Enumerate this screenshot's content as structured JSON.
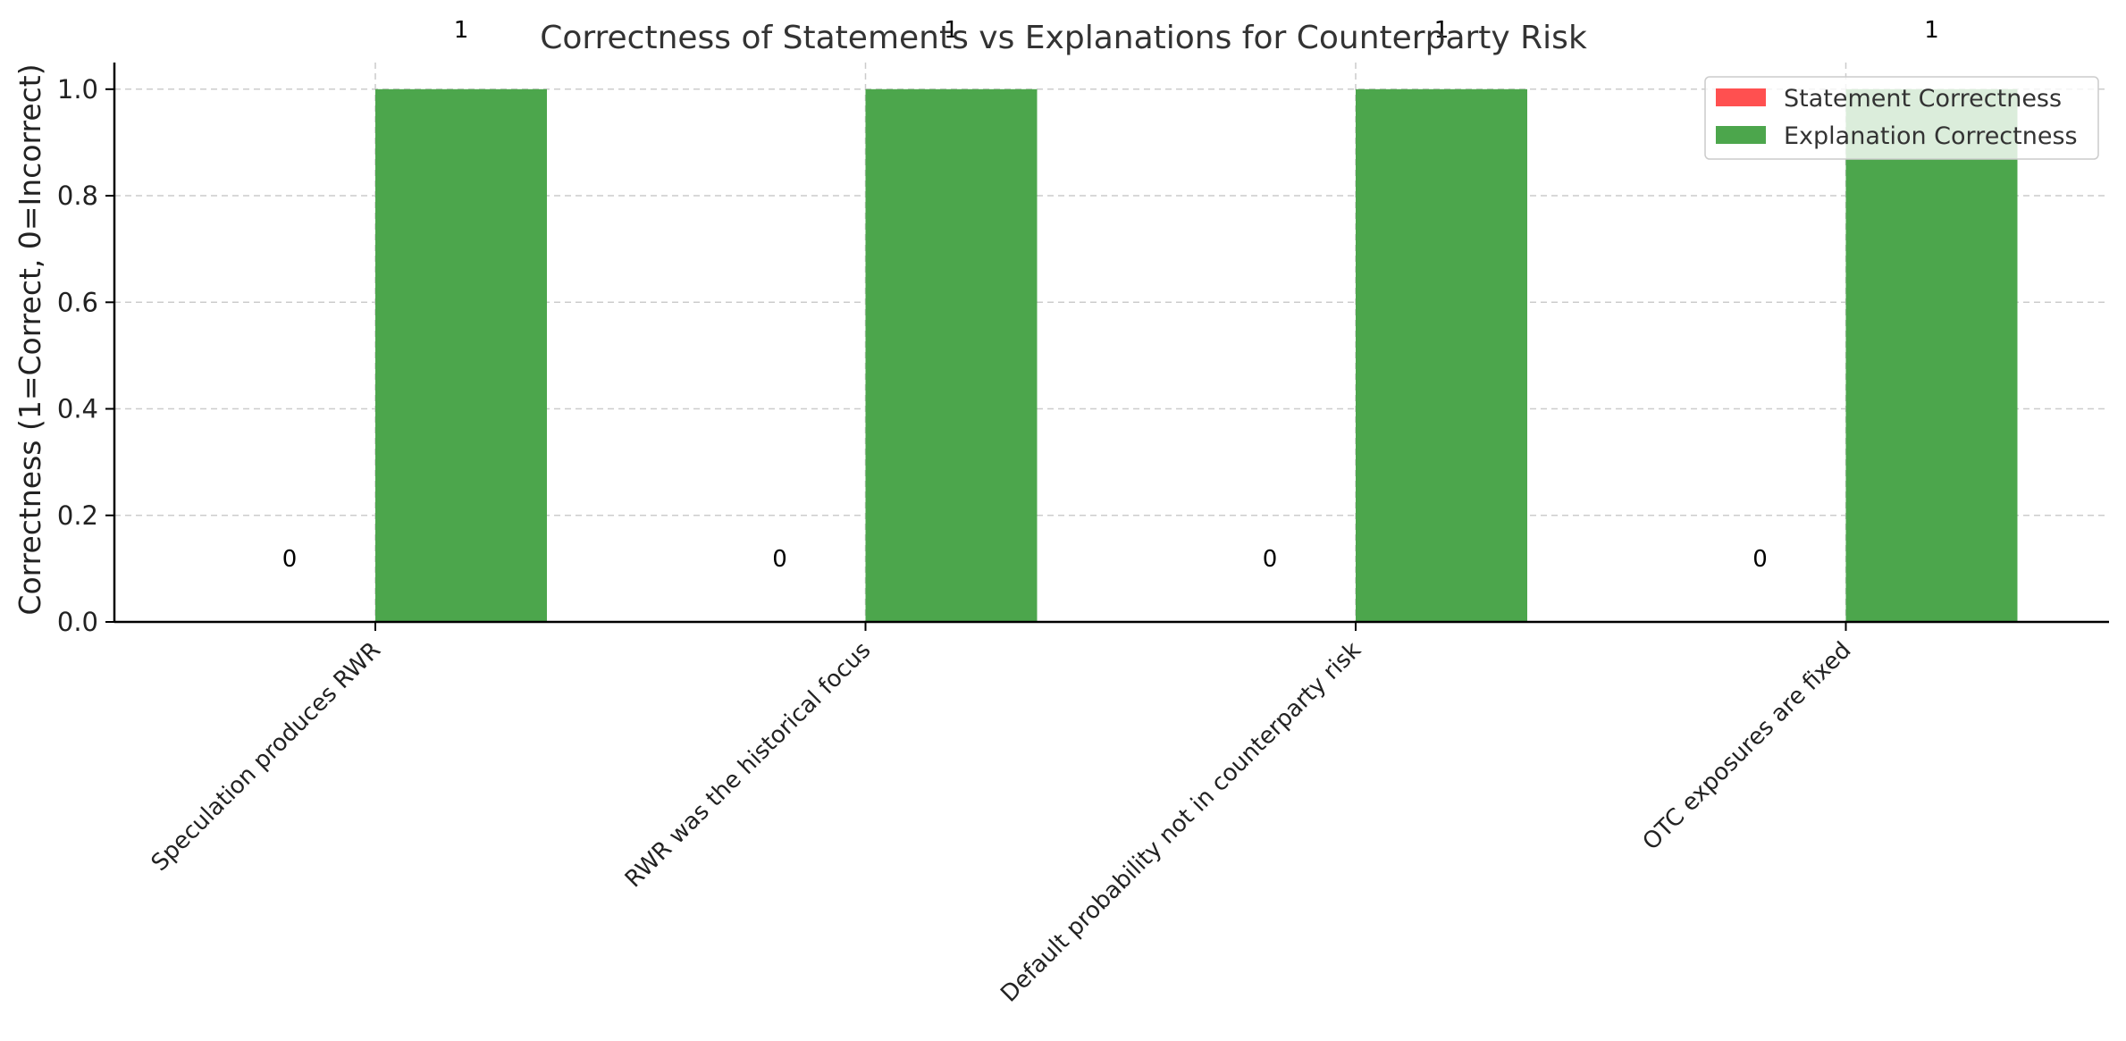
{
  "chart_data": {
    "type": "bar",
    "title": "Correctness of Statements vs Explanations for Counterparty Risk",
    "xlabel": "",
    "ylabel": "Correctness (1=Correct, 0=Incorrect)",
    "categories": [
      "Speculation produces RWR",
      "RWR was the historical focus",
      "Default probability not in counterparty risk",
      "OTC exposures are fixed"
    ],
    "series": [
      {
        "name": "Statement Correctness",
        "color": "#ff5050",
        "values": [
          0,
          0,
          0,
          0
        ],
        "labels": [
          "0",
          "0",
          "0",
          "0"
        ]
      },
      {
        "name": "Explanation Correctness",
        "color": "#4ca64c",
        "values": [
          1,
          1,
          1,
          1
        ],
        "labels": [
          "1",
          "1",
          "1",
          "1"
        ]
      }
    ],
    "ylim": [
      0,
      1.05
    ],
    "yticks": [
      "0.0",
      "0.2",
      "0.4",
      "0.6",
      "0.8",
      "1.0"
    ],
    "grid": true,
    "legend_position": "top-right"
  }
}
